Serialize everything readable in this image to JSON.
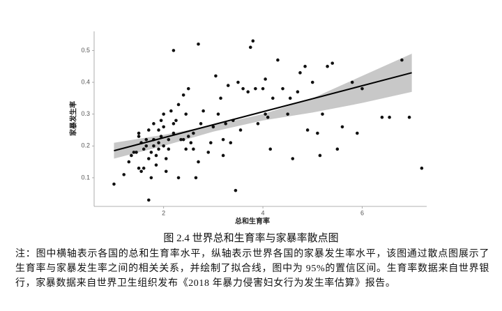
{
  "chart_data": {
    "type": "scatter",
    "xlabel": "总和生育率",
    "ylabel": "家暴发生率",
    "xlim": [
      0.6,
      7.3
    ],
    "ylim": [
      0.01,
      0.56
    ],
    "xticks": [
      2,
      4,
      6
    ],
    "yticks": [
      0.1,
      0.2,
      0.3,
      0.4,
      0.5
    ],
    "series": [
      {
        "color": "#111111",
        "x": [
          1.0,
          1.2,
          1.3,
          1.35,
          1.4,
          1.45,
          1.5,
          1.5,
          1.55,
          1.5,
          1.55,
          1.6,
          1.6,
          1.65,
          1.65,
          1.7,
          1.7,
          1.7,
          1.75,
          1.75,
          1.8,
          1.8,
          1.8,
          1.85,
          1.85,
          1.9,
          1.9,
          1.9,
          1.95,
          1.95,
          2.0,
          2.0,
          2.0,
          2.05,
          2.05,
          2.1,
          2.1,
          2.15,
          2.2,
          2.2,
          2.2,
          2.25,
          2.3,
          2.3,
          2.35,
          2.4,
          2.45,
          2.45,
          2.5,
          2.5,
          2.55,
          2.6,
          2.6,
          2.65,
          2.7,
          2.7,
          2.75,
          2.8,
          2.9,
          2.95,
          3.0,
          3.05,
          3.1,
          3.15,
          3.2,
          3.25,
          3.3,
          3.35,
          3.4,
          3.45,
          3.5,
          3.55,
          3.6,
          3.7,
          3.75,
          3.8,
          3.85,
          3.9,
          4.0,
          4.05,
          4.1,
          4.15,
          4.2,
          4.3,
          4.4,
          4.5,
          4.55,
          4.6,
          4.7,
          4.75,
          4.85,
          4.9,
          5.0,
          5.1,
          5.15,
          5.2,
          5.3,
          5.4,
          5.5,
          5.6,
          5.8,
          5.9,
          6.0,
          6.4,
          6.55,
          6.8,
          6.95,
          7.2,
          4.05,
          3.2,
          2.4
        ],
        "y": [
          0.08,
          0.11,
          0.15,
          0.17,
          0.18,
          0.18,
          0.23,
          0.24,
          0.21,
          0.13,
          0.12,
          0.13,
          0.19,
          0.2,
          0.22,
          0.16,
          0.25,
          0.03,
          0.1,
          0.18,
          0.2,
          0.22,
          0.27,
          0.14,
          0.17,
          0.19,
          0.21,
          0.25,
          0.23,
          0.28,
          0.2,
          0.3,
          0.26,
          0.12,
          0.16,
          0.22,
          0.19,
          0.31,
          0.24,
          0.27,
          0.5,
          0.28,
          0.1,
          0.33,
          0.22,
          0.36,
          0.3,
          0.19,
          0.38,
          0.23,
          0.21,
          0.24,
          0.19,
          0.1,
          0.15,
          0.52,
          0.27,
          0.31,
          0.18,
          0.21,
          0.26,
          0.42,
          0.3,
          0.35,
          0.17,
          0.27,
          0.39,
          0.21,
          0.28,
          0.06,
          0.4,
          0.25,
          0.38,
          0.37,
          0.51,
          0.53,
          0.38,
          0.27,
          0.38,
          0.41,
          0.29,
          0.19,
          0.35,
          0.47,
          0.38,
          0.3,
          0.35,
          0.16,
          0.37,
          0.43,
          0.45,
          0.25,
          0.4,
          0.24,
          0.17,
          0.3,
          0.45,
          0.46,
          0.19,
          0.26,
          0.4,
          0.24,
          0.38,
          0.29,
          0.29,
          0.47,
          0.29,
          0.13,
          0.3,
          0.22,
          0.22
        ]
      }
    ],
    "fit": {
      "color": "#000000",
      "x": [
        1.0,
        7.0
      ],
      "y": [
        0.185,
        0.43
      ]
    },
    "band": {
      "color": "#c8c8c8",
      "x": [
        1.0,
        2.0,
        3.0,
        4.0,
        5.0,
        6.0,
        7.0
      ],
      "lower": [
        0.16,
        0.2,
        0.245,
        0.28,
        0.305,
        0.335,
        0.37
      ],
      "upper": [
        0.21,
        0.235,
        0.265,
        0.3,
        0.35,
        0.42,
        0.49
      ]
    }
  },
  "caption": "图 2.4    世界总和生育率与家暴率散点图",
  "note": "注：图中横轴表示各国的总和生育率水平，纵轴表示世界各国的家暴发生率水平，该图通过散点图展示了生育率与家暴发生率之间的相关关系，并绘制了拟合线，图中为 95%的置信区间。生育率数据来自世界银行，家暴数据来自世界卫生组织发布《2018 年暴力侵害妇女行为发生率估算》报告。"
}
